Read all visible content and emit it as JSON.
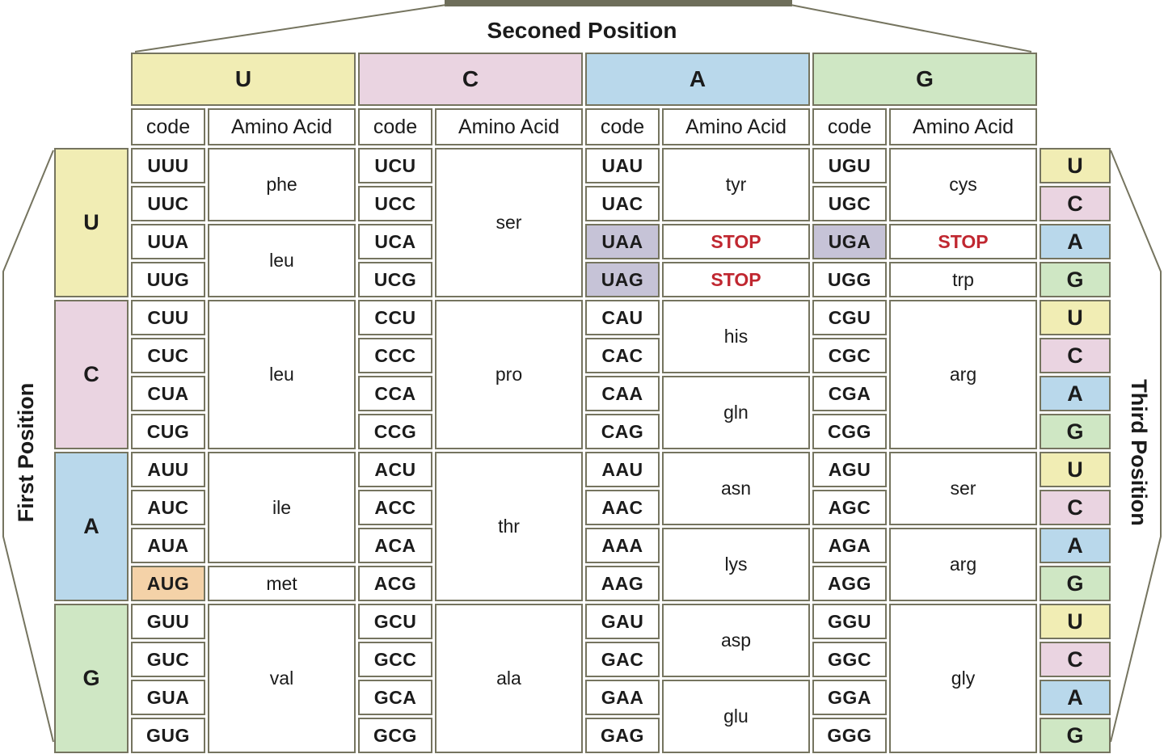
{
  "title": "Seconed Position",
  "left_axis_label": "First Position",
  "right_axis_label": "Third Position",
  "subheader": {
    "code": "code",
    "amino": "Amino Acid"
  },
  "bases": [
    "U",
    "C",
    "A",
    "G"
  ],
  "third_position_sequence": [
    "U",
    "C",
    "A",
    "G"
  ],
  "colors": {
    "U": "#f1edb4",
    "C": "#ead4e1",
    "A": "#b9d8eb",
    "G": "#cfe7c4",
    "stop_code_bg": "#c6c3d7",
    "start_code_bg": "#f4d2a8",
    "stop_text": "#c02730",
    "border": "#75745f"
  },
  "highlight_codes": {
    "UAA": "stop",
    "UAG": "stop",
    "UGA": "stop",
    "AUG": "start"
  },
  "blocks": [
    {
      "first_base": "U",
      "groups": {
        "U": [
          {
            "codes": [
              "UUU",
              "UUC"
            ],
            "amino": "phe"
          },
          {
            "codes": [
              "UUA",
              "UUG"
            ],
            "amino": "leu"
          }
        ],
        "C": [
          {
            "codes": [
              "UCU",
              "UCC",
              "UCA",
              "UCG"
            ],
            "amino": "ser"
          }
        ],
        "A": [
          {
            "codes": [
              "UAU",
              "UAC"
            ],
            "amino": "tyr"
          },
          {
            "codes": [
              "UAA"
            ],
            "amino": "STOP",
            "stop": true
          },
          {
            "codes": [
              "UAG"
            ],
            "amino": "STOP",
            "stop": true
          }
        ],
        "G": [
          {
            "codes": [
              "UGU",
              "UGC"
            ],
            "amino": "cys"
          },
          {
            "codes": [
              "UGA"
            ],
            "amino": "STOP",
            "stop": true
          },
          {
            "codes": [
              "UGG"
            ],
            "amino": "trp"
          }
        ]
      }
    },
    {
      "first_base": "C",
      "groups": {
        "U": [
          {
            "codes": [
              "CUU",
              "CUC",
              "CUA",
              "CUG"
            ],
            "amino": "leu"
          }
        ],
        "C": [
          {
            "codes": [
              "CCU",
              "CCC",
              "CCA",
              "CCG"
            ],
            "amino": "pro"
          }
        ],
        "A": [
          {
            "codes": [
              "CAU",
              "CAC"
            ],
            "amino": "his"
          },
          {
            "codes": [
              "CAA",
              "CAG"
            ],
            "amino": "gln"
          }
        ],
        "G": [
          {
            "codes": [
              "CGU",
              "CGC",
              "CGA",
              "CGG"
            ],
            "amino": "arg"
          }
        ]
      }
    },
    {
      "first_base": "A",
      "groups": {
        "U": [
          {
            "codes": [
              "AUU",
              "AUC",
              "AUA"
            ],
            "amino": "ile"
          },
          {
            "codes": [
              "AUG"
            ],
            "amino": "met"
          }
        ],
        "C": [
          {
            "codes": [
              "ACU",
              "ACC",
              "ACA",
              "ACG"
            ],
            "amino": "thr"
          }
        ],
        "A": [
          {
            "codes": [
              "AAU",
              "AAC"
            ],
            "amino": "asn"
          },
          {
            "codes": [
              "AAA",
              "AAG"
            ],
            "amino": "lys"
          }
        ],
        "G": [
          {
            "codes": [
              "AGU",
              "AGC"
            ],
            "amino": "ser"
          },
          {
            "codes": [
              "AGA",
              "AGG"
            ],
            "amino": "arg"
          }
        ]
      }
    },
    {
      "first_base": "G",
      "groups": {
        "U": [
          {
            "codes": [
              "GUU",
              "GUC",
              "GUA",
              "GUG"
            ],
            "amino": "val"
          }
        ],
        "C": [
          {
            "codes": [
              "GCU",
              "GCC",
              "GCA",
              "GCG"
            ],
            "amino": "ala"
          }
        ],
        "A": [
          {
            "codes": [
              "GAU",
              "GAC"
            ],
            "amino": "asp"
          },
          {
            "codes": [
              "GAA",
              "GAG"
            ],
            "amino": "glu"
          }
        ],
        "G": [
          {
            "codes": [
              "GGU",
              "GGC",
              "GGA",
              "GGG"
            ],
            "amino": "gly"
          }
        ]
      }
    }
  ]
}
